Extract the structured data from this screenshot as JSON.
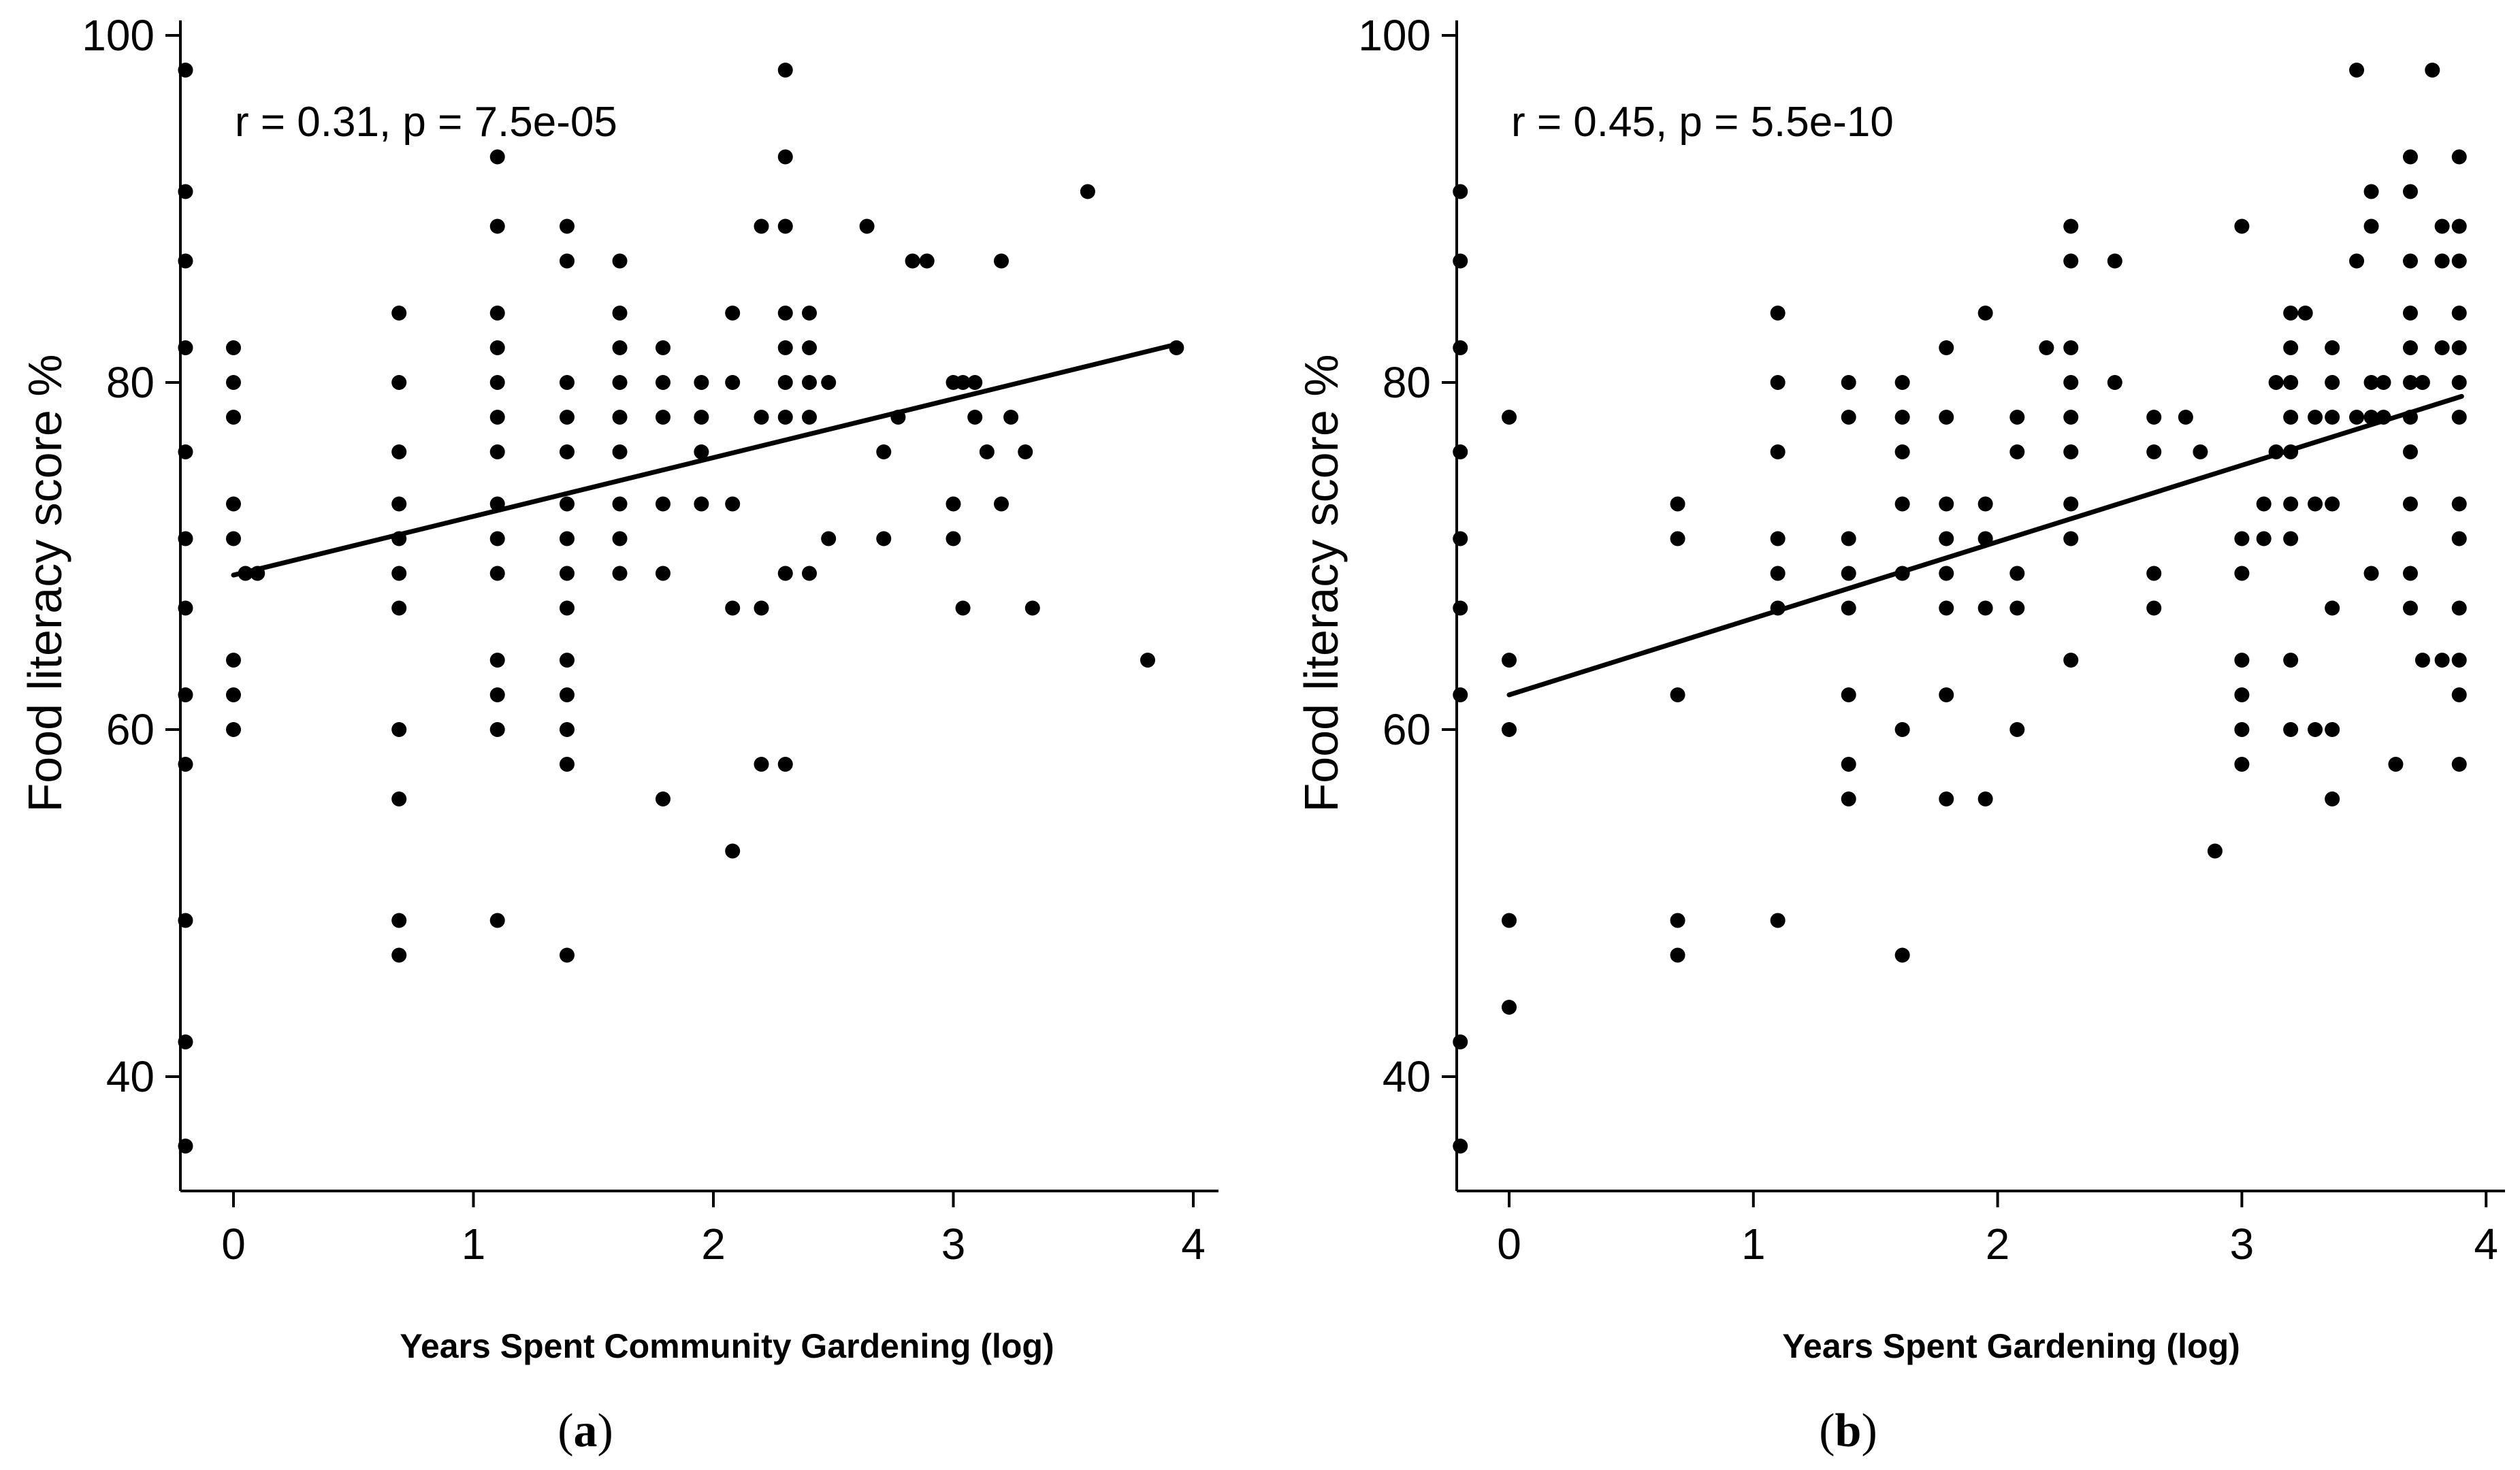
{
  "chart_data": [
    {
      "type": "scatter",
      "panel_label": "a",
      "xlabel": "Years Spent Community Gardening (log)",
      "ylabel": "Food literacy score %",
      "annotation": "r = 0.31, p = 7.5e-05",
      "x_ticks": [
        "0",
        "1",
        "2",
        "3",
        "4"
      ],
      "y_ticks": [
        "40",
        "60",
        "80",
        "100"
      ],
      "xlim": [
        -0.2,
        4.1
      ],
      "ylim": [
        33,
        101
      ],
      "regression_line": {
        "x": [
          0,
          3.93
        ],
        "y": [
          68.9,
          82.2
        ]
      },
      "points": [
        [
          -0.2,
          98
        ],
        [
          -0.2,
          91
        ],
        [
          -0.2,
          87
        ],
        [
          -0.2,
          82
        ],
        [
          -0.2,
          76
        ],
        [
          -0.2,
          71
        ],
        [
          -0.2,
          67
        ],
        [
          -0.2,
          62
        ],
        [
          -0.2,
          58
        ],
        [
          -0.2,
          49
        ],
        [
          -0.2,
          42
        ],
        [
          -0.2,
          36
        ],
        [
          0,
          82
        ],
        [
          0,
          80
        ],
        [
          0,
          78
        ],
        [
          0,
          73
        ],
        [
          0,
          71
        ],
        [
          0,
          64
        ],
        [
          0,
          62
        ],
        [
          0,
          60
        ],
        [
          0.05,
          69
        ],
        [
          0.1,
          69
        ],
        [
          0.69,
          84
        ],
        [
          0.69,
          80
        ],
        [
          0.69,
          76
        ],
        [
          0.69,
          73
        ],
        [
          0.69,
          71
        ],
        [
          0.69,
          69
        ],
        [
          0.69,
          67
        ],
        [
          0.69,
          60
        ],
        [
          0.69,
          56
        ],
        [
          0.69,
          49
        ],
        [
          0.69,
          47
        ],
        [
          1.1,
          93
        ],
        [
          1.1,
          89
        ],
        [
          1.1,
          84
        ],
        [
          1.1,
          82
        ],
        [
          1.1,
          80
        ],
        [
          1.1,
          78
        ],
        [
          1.1,
          76
        ],
        [
          1.1,
          73
        ],
        [
          1.1,
          71
        ],
        [
          1.1,
          69
        ],
        [
          1.1,
          64
        ],
        [
          1.1,
          62
        ],
        [
          1.1,
          60
        ],
        [
          1.1,
          49
        ],
        [
          1.39,
          89
        ],
        [
          1.39,
          87
        ],
        [
          1.39,
          80
        ],
        [
          1.39,
          78
        ],
        [
          1.39,
          76
        ],
        [
          1.39,
          73
        ],
        [
          1.39,
          71
        ],
        [
          1.39,
          69
        ],
        [
          1.39,
          67
        ],
        [
          1.39,
          64
        ],
        [
          1.39,
          62
        ],
        [
          1.39,
          60
        ],
        [
          1.39,
          58
        ],
        [
          1.39,
          47
        ],
        [
          1.61,
          87
        ],
        [
          1.61,
          84
        ],
        [
          1.61,
          82
        ],
        [
          1.61,
          80
        ],
        [
          1.61,
          78
        ],
        [
          1.61,
          76
        ],
        [
          1.61,
          73
        ],
        [
          1.61,
          71
        ],
        [
          1.61,
          69
        ],
        [
          1.79,
          82
        ],
        [
          1.79,
          80
        ],
        [
          1.79,
          78
        ],
        [
          1.79,
          73
        ],
        [
          1.79,
          69
        ],
        [
          1.79,
          56
        ],
        [
          1.95,
          80
        ],
        [
          1.95,
          78
        ],
        [
          1.95,
          76
        ],
        [
          1.95,
          73
        ],
        [
          2.08,
          84
        ],
        [
          2.08,
          80
        ],
        [
          2.08,
          73
        ],
        [
          2.08,
          67
        ],
        [
          2.08,
          53
        ],
        [
          2.2,
          89
        ],
        [
          2.2,
          78
        ],
        [
          2.2,
          67
        ],
        [
          2.2,
          58
        ],
        [
          2.3,
          98
        ],
        [
          2.3,
          93
        ],
        [
          2.3,
          89
        ],
        [
          2.3,
          84
        ],
        [
          2.3,
          82
        ],
        [
          2.3,
          80
        ],
        [
          2.3,
          78
        ],
        [
          2.3,
          69
        ],
        [
          2.3,
          58
        ],
        [
          2.4,
          84
        ],
        [
          2.4,
          82
        ],
        [
          2.4,
          80
        ],
        [
          2.4,
          78
        ],
        [
          2.4,
          69
        ],
        [
          2.48,
          80
        ],
        [
          2.48,
          71
        ],
        [
          2.64,
          89
        ],
        [
          2.71,
          76
        ],
        [
          2.71,
          71
        ],
        [
          2.77,
          78
        ],
        [
          2.83,
          87
        ],
        [
          2.89,
          87
        ],
        [
          3.0,
          80
        ],
        [
          3.0,
          73
        ],
        [
          3.0,
          71
        ],
        [
          3.04,
          80
        ],
        [
          3.04,
          67
        ],
        [
          3.09,
          80
        ],
        [
          3.09,
          78
        ],
        [
          3.14,
          76
        ],
        [
          3.2,
          87
        ],
        [
          3.2,
          73
        ],
        [
          3.24,
          78
        ],
        [
          3.3,
          76
        ],
        [
          3.33,
          67
        ],
        [
          3.56,
          91
        ],
        [
          3.81,
          64
        ],
        [
          3.93,
          82
        ]
      ]
    },
    {
      "type": "scatter",
      "panel_label": "b",
      "xlabel": "Years Spent Gardening (log)",
      "ylabel": "Food literacy score %",
      "annotation": "r = 0.45, p = 5.5e-10",
      "x_ticks": [
        "0",
        "1",
        "2",
        "3",
        "4"
      ],
      "y_ticks": [
        "40",
        "60",
        "80",
        "100"
      ],
      "xlim": [
        -0.2,
        4.1
      ],
      "ylim": [
        33,
        101
      ],
      "regression_line": {
        "x": [
          0,
          3.9
        ],
        "y": [
          62,
          79.2
        ]
      },
      "points": [
        [
          -0.2,
          91
        ],
        [
          -0.2,
          87
        ],
        [
          -0.2,
          82
        ],
        [
          -0.2,
          76
        ],
        [
          -0.2,
          71
        ],
        [
          -0.2,
          67
        ],
        [
          -0.2,
          62
        ],
        [
          -0.2,
          42
        ],
        [
          -0.2,
          36
        ],
        [
          0,
          78
        ],
        [
          0,
          64
        ],
        [
          0,
          60
        ],
        [
          0,
          49
        ],
        [
          0,
          44
        ],
        [
          0.69,
          73
        ],
        [
          0.69,
          71
        ],
        [
          0.69,
          62
        ],
        [
          0.69,
          49
        ],
        [
          0.69,
          47
        ],
        [
          1.1,
          84
        ],
        [
          1.1,
          80
        ],
        [
          1.1,
          76
        ],
        [
          1.1,
          71
        ],
        [
          1.1,
          69
        ],
        [
          1.1,
          67
        ],
        [
          1.1,
          49
        ],
        [
          1.39,
          80
        ],
        [
          1.39,
          78
        ],
        [
          1.39,
          71
        ],
        [
          1.39,
          69
        ],
        [
          1.39,
          67
        ],
        [
          1.39,
          62
        ],
        [
          1.39,
          58
        ],
        [
          1.39,
          56
        ],
        [
          1.61,
          80
        ],
        [
          1.61,
          78
        ],
        [
          1.61,
          76
        ],
        [
          1.61,
          73
        ],
        [
          1.61,
          69
        ],
        [
          1.61,
          60
        ],
        [
          1.61,
          47
        ],
        [
          1.79,
          82
        ],
        [
          1.79,
          78
        ],
        [
          1.79,
          73
        ],
        [
          1.79,
          71
        ],
        [
          1.79,
          69
        ],
        [
          1.79,
          67
        ],
        [
          1.79,
          62
        ],
        [
          1.79,
          56
        ],
        [
          1.95,
          84
        ],
        [
          1.95,
          73
        ],
        [
          1.95,
          71
        ],
        [
          1.95,
          67
        ],
        [
          1.95,
          56
        ],
        [
          2.08,
          78
        ],
        [
          2.08,
          76
        ],
        [
          2.08,
          69
        ],
        [
          2.08,
          67
        ],
        [
          2.08,
          60
        ],
        [
          2.2,
          82
        ],
        [
          2.3,
          89
        ],
        [
          2.3,
          87
        ],
        [
          2.3,
          82
        ],
        [
          2.3,
          80
        ],
        [
          2.3,
          78
        ],
        [
          2.3,
          76
        ],
        [
          2.3,
          73
        ],
        [
          2.3,
          71
        ],
        [
          2.3,
          64
        ],
        [
          2.48,
          87
        ],
        [
          2.48,
          80
        ],
        [
          2.64,
          78
        ],
        [
          2.64,
          76
        ],
        [
          2.64,
          69
        ],
        [
          2.64,
          67
        ],
        [
          2.77,
          78
        ],
        [
          2.83,
          76
        ],
        [
          2.89,
          53
        ],
        [
          3.0,
          89
        ],
        [
          3.0,
          71
        ],
        [
          3.0,
          69
        ],
        [
          3.0,
          64
        ],
        [
          3.0,
          62
        ],
        [
          3.0,
          60
        ],
        [
          3.0,
          58
        ],
        [
          3.09,
          73
        ],
        [
          3.09,
          71
        ],
        [
          3.14,
          80
        ],
        [
          3.14,
          76
        ],
        [
          3.2,
          84
        ],
        [
          3.2,
          82
        ],
        [
          3.2,
          80
        ],
        [
          3.2,
          78
        ],
        [
          3.2,
          76
        ],
        [
          3.2,
          73
        ],
        [
          3.2,
          71
        ],
        [
          3.2,
          64
        ],
        [
          3.2,
          60
        ],
        [
          3.26,
          84
        ],
        [
          3.3,
          78
        ],
        [
          3.3,
          73
        ],
        [
          3.3,
          60
        ],
        [
          3.37,
          82
        ],
        [
          3.37,
          80
        ],
        [
          3.37,
          78
        ],
        [
          3.37,
          73
        ],
        [
          3.37,
          67
        ],
        [
          3.37,
          60
        ],
        [
          3.37,
          56
        ],
        [
          3.47,
          98
        ],
        [
          3.47,
          87
        ],
        [
          3.47,
          78
        ],
        [
          3.53,
          91
        ],
        [
          3.53,
          89
        ],
        [
          3.53,
          80
        ],
        [
          3.53,
          78
        ],
        [
          3.53,
          69
        ],
        [
          3.58,
          80
        ],
        [
          3.58,
          78
        ],
        [
          3.63,
          58
        ],
        [
          3.69,
          93
        ],
        [
          3.69,
          91
        ],
        [
          3.69,
          87
        ],
        [
          3.69,
          84
        ],
        [
          3.69,
          82
        ],
        [
          3.69,
          80
        ],
        [
          3.69,
          78
        ],
        [
          3.69,
          76
        ],
        [
          3.69,
          73
        ],
        [
          3.69,
          69
        ],
        [
          3.69,
          67
        ],
        [
          3.74,
          80
        ],
        [
          3.74,
          64
        ],
        [
          3.78,
          98
        ],
        [
          3.82,
          89
        ],
        [
          3.82,
          87
        ],
        [
          3.82,
          82
        ],
        [
          3.82,
          64
        ],
        [
          3.89,
          93
        ],
        [
          3.89,
          89
        ],
        [
          3.89,
          87
        ],
        [
          3.89,
          84
        ],
        [
          3.89,
          82
        ],
        [
          3.89,
          80
        ],
        [
          3.89,
          78
        ],
        [
          3.89,
          73
        ],
        [
          3.89,
          71
        ],
        [
          3.89,
          67
        ],
        [
          3.89,
          64
        ],
        [
          3.89,
          62
        ],
        [
          3.89,
          58
        ]
      ]
    }
  ]
}
